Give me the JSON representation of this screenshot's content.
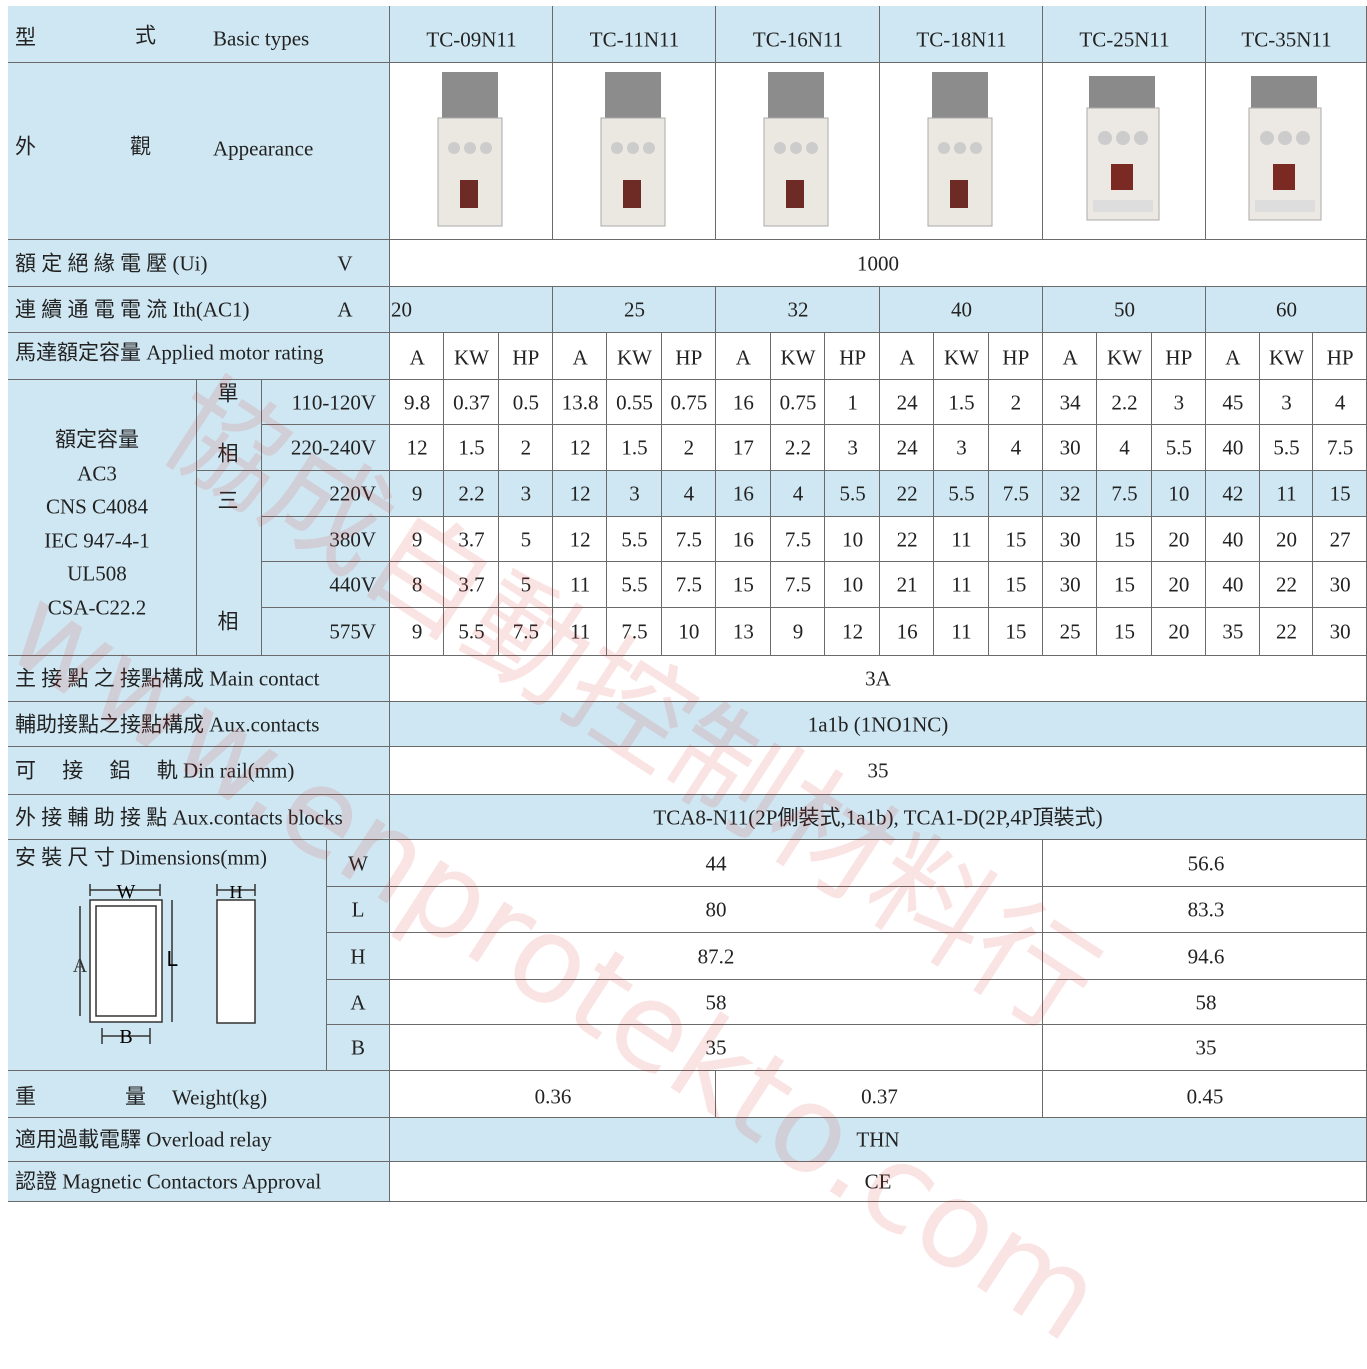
{
  "table": {
    "models": [
      "TC-09N11",
      "TC-11N11",
      "TC-16N11",
      "TC-18N11",
      "TC-25N11",
      "TC-35N11"
    ],
    "type_row": {
      "zh": [
        "型",
        "式"
      ],
      "en": "Basic types"
    },
    "appearance_row": {
      "zh": [
        "外",
        "觀"
      ],
      "en": "Appearance"
    },
    "ui_row": {
      "label": "額 定 絕 緣 電 壓 (Ui)",
      "unit": "V",
      "value": 1000
    },
    "ith_row": {
      "label": "連 續 通 電 電 流 Ith(AC1)",
      "unit": "A",
      "values": [
        20,
        25,
        32,
        40,
        50,
        60
      ]
    },
    "motor_row": {
      "label": "馬達額定容量 Applied motor rating",
      "units": [
        "A",
        "KW",
        "HP"
      ]
    },
    "ac3": {
      "label": [
        "額定容量",
        "AC3",
        "CNS C4084",
        "IEC 947-4-1",
        "UL508",
        "CSA-C22.2"
      ],
      "single_phase": [
        "單",
        "相"
      ],
      "three_phase": [
        "三",
        "相"
      ],
      "rows": [
        {
          "voltage": "110-120V",
          "values": [
            9.8,
            0.37,
            0.5,
            13.8,
            0.55,
            0.75,
            16,
            0.75,
            1,
            24,
            1.5,
            2,
            34,
            2.2,
            3,
            45,
            3,
            4
          ]
        },
        {
          "voltage": "220-240V",
          "values": [
            12,
            1.5,
            2,
            12,
            1.5,
            2,
            17,
            2.2,
            3,
            24,
            3,
            4,
            30,
            4,
            5.5,
            40,
            5.5,
            7.5
          ]
        },
        {
          "voltage": "220V",
          "values": [
            9,
            2.2,
            3,
            12,
            3,
            4,
            16,
            4,
            5.5,
            22,
            5.5,
            7.5,
            32,
            7.5,
            10,
            42,
            11,
            15
          ]
        },
        {
          "voltage": "380V",
          "values": [
            9,
            3.7,
            5,
            12,
            5.5,
            7.5,
            16,
            7.5,
            10,
            22,
            11,
            15,
            30,
            15,
            20,
            40,
            20,
            27
          ]
        },
        {
          "voltage": "440V",
          "values": [
            8,
            3.7,
            5,
            11,
            5.5,
            7.5,
            15,
            7.5,
            10,
            21,
            11,
            15,
            30,
            15,
            20,
            40,
            22,
            30
          ]
        },
        {
          "voltage": "575V",
          "values": [
            9,
            5.5,
            7.5,
            11,
            7.5,
            10,
            13,
            9,
            12,
            16,
            11,
            15,
            25,
            15,
            20,
            35,
            22,
            30
          ]
        }
      ]
    },
    "main_contact": {
      "label": "主 接 點 之 接點構成 Main contact",
      "value": "3A"
    },
    "aux_contacts": {
      "label": "輔助接點之接點構成 Aux.contacts",
      "value": "1a1b (1NO1NC)"
    },
    "din_rail": {
      "label": "可　 接　 鋁　 軌 Din rail(mm)",
      "value": 35
    },
    "aux_blocks": {
      "label": "外 接 輔 助 接 點 Aux.contacts blocks",
      "value": "TCA8-N11(2P側裝式,1a1b), TCA1-D(2P,4P頂裝式)"
    },
    "dimensions": {
      "label": "安 裝 尺 寸 Dimensions(mm)",
      "diagram_labels": [
        "W",
        "H",
        "A",
        "L",
        "B"
      ],
      "rows": [
        {
          "dim": "W",
          "values": [
            44,
            56.6
          ]
        },
        {
          "dim": "L",
          "values": [
            80,
            83.3
          ]
        },
        {
          "dim": "H",
          "values": [
            87.2,
            94.6
          ]
        },
        {
          "dim": "A",
          "values": [
            58,
            58
          ]
        },
        {
          "dim": "B",
          "values": [
            35,
            35
          ]
        }
      ]
    },
    "weight": {
      "zh": [
        "重",
        "量"
      ],
      "en": "Weight(kg)",
      "values": [
        0.36,
        0.37,
        0.45
      ]
    },
    "overload_relay": {
      "label": "適用過載電驛 Overload relay",
      "value": "THN"
    },
    "approval": {
      "label": "認證 Magnetic Contactors Approval",
      "value": "CE"
    },
    "watermark": [
      "協成自動控制材料行",
      "www.enprotekto.com"
    ]
  }
}
